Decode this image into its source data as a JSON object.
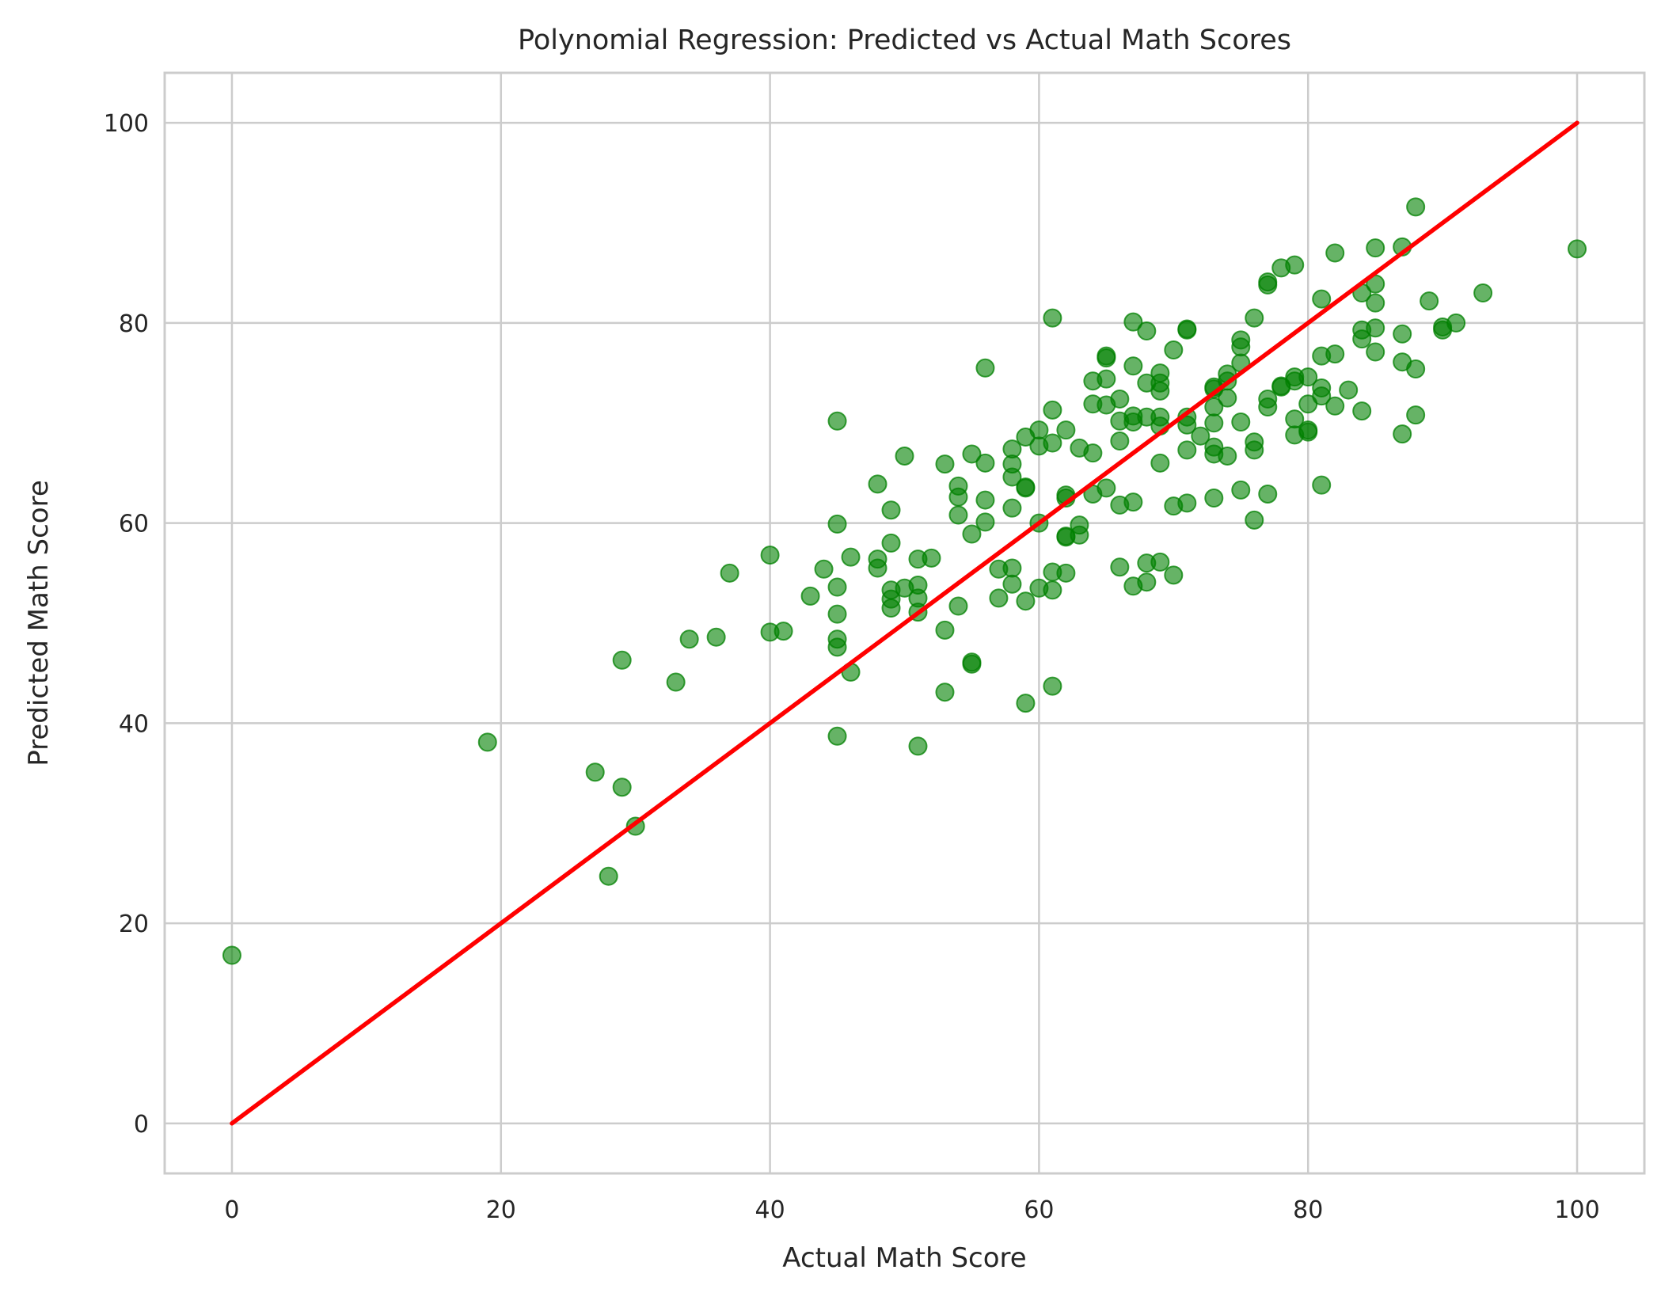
{
  "chart_data": {
    "type": "scatter",
    "title": "Polynomial Regression: Predicted vs Actual Math Scores",
    "xlabel": "Actual Math Score",
    "ylabel": "Predicted Math Score",
    "xlim": [
      -5,
      105
    ],
    "ylim": [
      -5,
      105
    ],
    "xticks": [
      0,
      20,
      40,
      60,
      80,
      100
    ],
    "yticks": [
      0,
      20,
      40,
      60,
      80,
      100
    ],
    "grid": true,
    "legend": "none",
    "colors": {
      "points": "#008000",
      "reference_line": "#ff0000",
      "grid": "#cccccc"
    },
    "reference_line": {
      "x": [
        0,
        100
      ],
      "y": [
        0,
        100
      ]
    },
    "points": [
      [
        0,
        16.8
      ],
      [
        19,
        38.1
      ],
      [
        27,
        35.1
      ],
      [
        28,
        24.7
      ],
      [
        29,
        46.3
      ],
      [
        29,
        33.6
      ],
      [
        30,
        29.7
      ],
      [
        33,
        44.1
      ],
      [
        34,
        48.4
      ],
      [
        36,
        48.6
      ],
      [
        37,
        55.0
      ],
      [
        40,
        56.8
      ],
      [
        40,
        49.1
      ],
      [
        41,
        49.2
      ],
      [
        43,
        52.7
      ],
      [
        44,
        55.4
      ],
      [
        45,
        70.2
      ],
      [
        45,
        59.9
      ],
      [
        45,
        53.6
      ],
      [
        45,
        50.9
      ],
      [
        45,
        48.4
      ],
      [
        45,
        47.6
      ],
      [
        45,
        38.7
      ],
      [
        46,
        56.6
      ],
      [
        46,
        45.1
      ],
      [
        48,
        63.9
      ],
      [
        48,
        56.4
      ],
      [
        48,
        55.5
      ],
      [
        49,
        61.3
      ],
      [
        49,
        58.0
      ],
      [
        49,
        53.3
      ],
      [
        49,
        52.4
      ],
      [
        49,
        51.5
      ],
      [
        50,
        66.7
      ],
      [
        50,
        53.5
      ],
      [
        51,
        56.4
      ],
      [
        51,
        53.8
      ],
      [
        51,
        52.5
      ],
      [
        51,
        51.1
      ],
      [
        51,
        37.7
      ],
      [
        52,
        56.5
      ],
      [
        53,
        65.9
      ],
      [
        53,
        49.3
      ],
      [
        53,
        43.1
      ],
      [
        54,
        63.7
      ],
      [
        54,
        62.6
      ],
      [
        54,
        60.8
      ],
      [
        54,
        51.7
      ],
      [
        55,
        66.9
      ],
      [
        55,
        58.9
      ],
      [
        55,
        46.1
      ],
      [
        55,
        45.9
      ],
      [
        56,
        75.5
      ],
      [
        56,
        66.0
      ],
      [
        56,
        62.3
      ],
      [
        56,
        60.1
      ],
      [
        57,
        55.4
      ],
      [
        57,
        52.5
      ],
      [
        58,
        67.4
      ],
      [
        58,
        65.9
      ],
      [
        58,
        64.6
      ],
      [
        58,
        61.5
      ],
      [
        58,
        55.5
      ],
      [
        58,
        53.9
      ],
      [
        59,
        68.6
      ],
      [
        59,
        63.6
      ],
      [
        59,
        63.5
      ],
      [
        59,
        52.2
      ],
      [
        59,
        42.0
      ],
      [
        60,
        69.3
      ],
      [
        60,
        67.7
      ],
      [
        60,
        60.0
      ],
      [
        60,
        53.5
      ],
      [
        61,
        80.5
      ],
      [
        61,
        71.3
      ],
      [
        61,
        68.0
      ],
      [
        61,
        55.1
      ],
      [
        61,
        53.3
      ],
      [
        61,
        43.7
      ],
      [
        62,
        69.3
      ],
      [
        62,
        62.8
      ],
      [
        62,
        62.5
      ],
      [
        62,
        58.7
      ],
      [
        62,
        58.6
      ],
      [
        62,
        55.0
      ],
      [
        63,
        67.5
      ],
      [
        63,
        59.8
      ],
      [
        63,
        58.8
      ],
      [
        64,
        74.2
      ],
      [
        64,
        71.9
      ],
      [
        64,
        67.0
      ],
      [
        64,
        62.9
      ],
      [
        65,
        76.7
      ],
      [
        65,
        76.5
      ],
      [
        65,
        74.4
      ],
      [
        65,
        71.8
      ],
      [
        65,
        63.5
      ],
      [
        66,
        72.4
      ],
      [
        66,
        70.2
      ],
      [
        66,
        68.2
      ],
      [
        66,
        61.8
      ],
      [
        66,
        55.6
      ],
      [
        67,
        80.1
      ],
      [
        67,
        75.7
      ],
      [
        67,
        70.7
      ],
      [
        67,
        70.1
      ],
      [
        67,
        62.1
      ],
      [
        67,
        53.7
      ],
      [
        68,
        79.2
      ],
      [
        68,
        74.0
      ],
      [
        68,
        70.6
      ],
      [
        68,
        56.0
      ],
      [
        68,
        54.1
      ],
      [
        69,
        75.0
      ],
      [
        69,
        74.0
      ],
      [
        69,
        73.2
      ],
      [
        69,
        70.6
      ],
      [
        69,
        69.7
      ],
      [
        69,
        66.0
      ],
      [
        69,
        56.1
      ],
      [
        70,
        77.3
      ],
      [
        70,
        61.7
      ],
      [
        70,
        54.8
      ],
      [
        71,
        79.4
      ],
      [
        71,
        79.3
      ],
      [
        71,
        70.6
      ],
      [
        71,
        69.8
      ],
      [
        71,
        67.3
      ],
      [
        71,
        62.0
      ],
      [
        72,
        68.7
      ],
      [
        73,
        73.6
      ],
      [
        73,
        73.4
      ],
      [
        73,
        71.6
      ],
      [
        73,
        70.0
      ],
      [
        73,
        67.6
      ],
      [
        73,
        66.9
      ],
      [
        73,
        62.5
      ],
      [
        74,
        74.9
      ],
      [
        74,
        74.2
      ],
      [
        74,
        72.5
      ],
      [
        74,
        66.7
      ],
      [
        75,
        78.3
      ],
      [
        75,
        77.6
      ],
      [
        75,
        76.0
      ],
      [
        75,
        70.1
      ],
      [
        75,
        63.3
      ],
      [
        76,
        80.5
      ],
      [
        76,
        68.1
      ],
      [
        76,
        67.3
      ],
      [
        76,
        60.3
      ],
      [
        77,
        84.1
      ],
      [
        77,
        83.8
      ],
      [
        77,
        72.4
      ],
      [
        77,
        71.6
      ],
      [
        77,
        62.9
      ],
      [
        78,
        85.5
      ],
      [
        78,
        73.7
      ],
      [
        78,
        73.6
      ],
      [
        79,
        85.8
      ],
      [
        79,
        74.6
      ],
      [
        79,
        74.2
      ],
      [
        79,
        70.4
      ],
      [
        79,
        68.8
      ],
      [
        80,
        74.6
      ],
      [
        80,
        71.9
      ],
      [
        80,
        69.3
      ],
      [
        80,
        69.1
      ],
      [
        81,
        82.4
      ],
      [
        81,
        76.7
      ],
      [
        81,
        73.5
      ],
      [
        81,
        72.7
      ],
      [
        81,
        63.8
      ],
      [
        82,
        87.0
      ],
      [
        82,
        76.9
      ],
      [
        82,
        71.7
      ],
      [
        83,
        73.3
      ],
      [
        84,
        83.0
      ],
      [
        84,
        79.3
      ],
      [
        84,
        78.4
      ],
      [
        84,
        71.2
      ],
      [
        85,
        87.5
      ],
      [
        85,
        83.9
      ],
      [
        85,
        82.0
      ],
      [
        85,
        79.5
      ],
      [
        85,
        77.1
      ],
      [
        87,
        87.6
      ],
      [
        87,
        78.9
      ],
      [
        87,
        76.1
      ],
      [
        87,
        68.9
      ],
      [
        88,
        91.6
      ],
      [
        88,
        75.4
      ],
      [
        88,
        70.8
      ],
      [
        89,
        82.2
      ],
      [
        90,
        79.6
      ],
      [
        90,
        79.3
      ],
      [
        91,
        80.0
      ],
      [
        93,
        83.0
      ],
      [
        100,
        87.4
      ]
    ]
  }
}
